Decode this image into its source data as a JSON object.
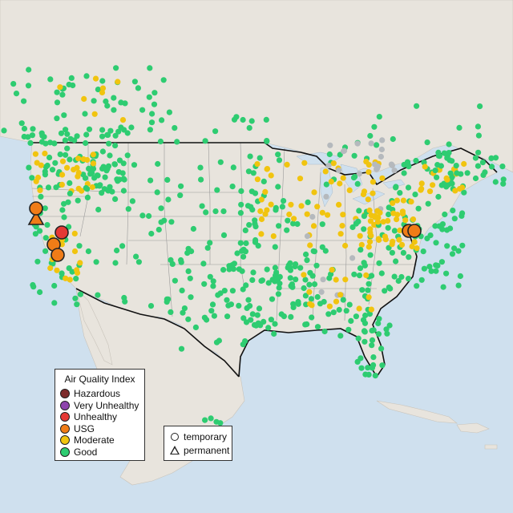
{
  "legend": {
    "title": "Air Quality Index",
    "categories": [
      {
        "label": "Hazardous",
        "color": "#7e2b2b"
      },
      {
        "label": "Very Unhealthy",
        "color": "#8e44ad"
      },
      {
        "label": "Unhealthy",
        "color": "#e53935"
      },
      {
        "label": "USG",
        "color": "#f07c17"
      },
      {
        "label": "Moderate",
        "color": "#f1c40f"
      },
      {
        "label": "Good",
        "color": "#2ecc71"
      }
    ]
  },
  "monitor_types": {
    "temporary_label": "temporary",
    "permanent_label": "permanent"
  },
  "colors": {
    "water": "#cfe0ee",
    "land": "#e8e4dd",
    "border": "#111111",
    "state_lines": "#9a9a9a",
    "no_data": "#b5b9bd"
  }
}
